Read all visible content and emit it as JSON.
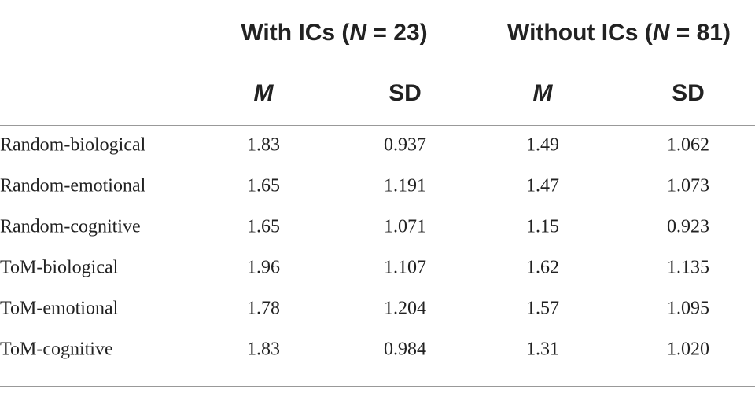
{
  "table": {
    "groups": [
      {
        "label": [
          "With ICs (",
          "N",
          " = 23)"
        ]
      },
      {
        "label": [
          "Without ICs (",
          "N",
          " = 81)"
        ]
      }
    ],
    "columns": [
      "M",
      "SD",
      "M",
      "SD"
    ],
    "rows": [
      [
        "Random-biological",
        "1.83",
        "0.937",
        "1.49",
        "1.062"
      ],
      [
        "Random-emotional",
        "1.65",
        "1.191",
        "1.47",
        "1.073"
      ],
      [
        "Random-cognitive",
        "1.65",
        "1.071",
        "1.15",
        "0.923"
      ],
      [
        "ToM-biological",
        "1.96",
        "1.107",
        "1.62",
        "1.135"
      ],
      [
        "ToM-emotional",
        "1.78",
        "1.204",
        "1.57",
        "1.095"
      ],
      [
        "ToM-cognitive",
        "1.83",
        "0.984",
        "1.31",
        "1.020"
      ]
    ]
  }
}
